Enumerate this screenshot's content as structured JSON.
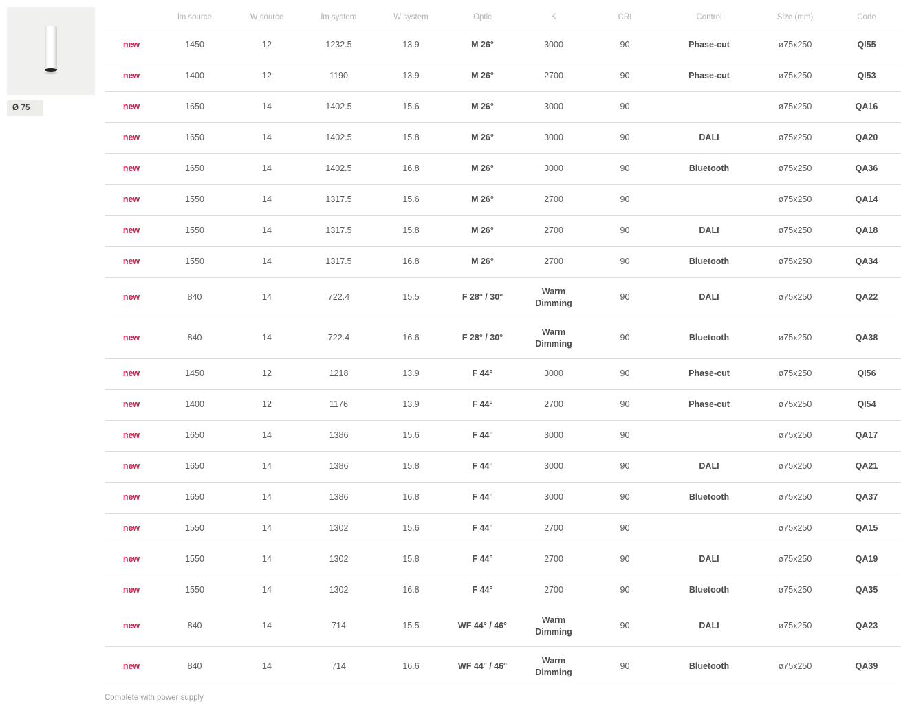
{
  "colors": {
    "accent_new": "#cd1f4c",
    "body_text": "#5b5b5d",
    "header_text": "#b2b2b2",
    "divider": "#dcdcdc",
    "product_image_bg": "#f0f0ef",
    "label_bg": "#ededea"
  },
  "product_panel": {
    "image_name": "white-cylinder-ceiling-lamp",
    "diameter_label": "Ø 75"
  },
  "table": {
    "column_keys": [
      "new",
      "lm_source",
      "w_source",
      "lm_system",
      "w_system",
      "optic",
      "k",
      "cri",
      "control",
      "size",
      "code"
    ],
    "headers": {
      "new": "",
      "lm_source": "lm source",
      "w_source": "W source",
      "lm_system": "lm system",
      "w_system": "W system",
      "optic": "Optic",
      "k": "K",
      "cri": "CRI",
      "control": "Control",
      "size": "Size (mm)",
      "code": "Code"
    },
    "rows": [
      {
        "new": "new",
        "lm_source": "1450",
        "w_source": "12",
        "lm_system": "1232.5",
        "w_system": "13.9",
        "optic": "M 26°",
        "k": "3000",
        "cri": "90",
        "control": "Phase-cut",
        "size": "ø75x250",
        "code": "QI55",
        "tall": false
      },
      {
        "new": "new",
        "lm_source": "1400",
        "w_source": "12",
        "lm_system": "1190",
        "w_system": "13.9",
        "optic": "M 26°",
        "k": "2700",
        "cri": "90",
        "control": "Phase-cut",
        "size": "ø75x250",
        "code": "QI53",
        "tall": false
      },
      {
        "new": "new",
        "lm_source": "1650",
        "w_source": "14",
        "lm_system": "1402.5",
        "w_system": "15.6",
        "optic": "M 26°",
        "k": "3000",
        "cri": "90",
        "control": "",
        "size": "ø75x250",
        "code": "QA16",
        "tall": false
      },
      {
        "new": "new",
        "lm_source": "1650",
        "w_source": "14",
        "lm_system": "1402.5",
        "w_system": "15.8",
        "optic": "M 26°",
        "k": "3000",
        "cri": "90",
        "control": "DALI",
        "size": "ø75x250",
        "code": "QA20",
        "tall": false
      },
      {
        "new": "new",
        "lm_source": "1650",
        "w_source": "14",
        "lm_system": "1402.5",
        "w_system": "16.8",
        "optic": "M 26°",
        "k": "3000",
        "cri": "90",
        "control": "Bluetooth",
        "size": "ø75x250",
        "code": "QA36",
        "tall": false
      },
      {
        "new": "new",
        "lm_source": "1550",
        "w_source": "14",
        "lm_system": "1317.5",
        "w_system": "15.6",
        "optic": "M 26°",
        "k": "2700",
        "cri": "90",
        "control": "",
        "size": "ø75x250",
        "code": "QA14",
        "tall": false
      },
      {
        "new": "new",
        "lm_source": "1550",
        "w_source": "14",
        "lm_system": "1317.5",
        "w_system": "15.8",
        "optic": "M 26°",
        "k": "2700",
        "cri": "90",
        "control": "DALI",
        "size": "ø75x250",
        "code": "QA18",
        "tall": false
      },
      {
        "new": "new",
        "lm_source": "1550",
        "w_source": "14",
        "lm_system": "1317.5",
        "w_system": "16.8",
        "optic": "M 26°",
        "k": "2700",
        "cri": "90",
        "control": "Bluetooth",
        "size": "ø75x250",
        "code": "QA34",
        "tall": false
      },
      {
        "new": "new",
        "lm_source": "840",
        "w_source": "14",
        "lm_system": "722.4",
        "w_system": "15.5",
        "optic": "F 28° / 30°",
        "k": "Warm\nDimming",
        "cri": "90",
        "control": "DALI",
        "size": "ø75x250",
        "code": "QA22",
        "tall": true
      },
      {
        "new": "new",
        "lm_source": "840",
        "w_source": "14",
        "lm_system": "722.4",
        "w_system": "16.6",
        "optic": "F 28° / 30°",
        "k": "Warm\nDimming",
        "cri": "90",
        "control": "Bluetooth",
        "size": "ø75x250",
        "code": "QA38",
        "tall": true
      },
      {
        "new": "new",
        "lm_source": "1450",
        "w_source": "12",
        "lm_system": "1218",
        "w_system": "13.9",
        "optic": "F 44°",
        "k": "3000",
        "cri": "90",
        "control": "Phase-cut",
        "size": "ø75x250",
        "code": "QI56",
        "tall": false
      },
      {
        "new": "new",
        "lm_source": "1400",
        "w_source": "12",
        "lm_system": "1176",
        "w_system": "13.9",
        "optic": "F 44°",
        "k": "2700",
        "cri": "90",
        "control": "Phase-cut",
        "size": "ø75x250",
        "code": "QI54",
        "tall": false
      },
      {
        "new": "new",
        "lm_source": "1650",
        "w_source": "14",
        "lm_system": "1386",
        "w_system": "15.6",
        "optic": "F 44°",
        "k": "3000",
        "cri": "90",
        "control": "",
        "size": "ø75x250",
        "code": "QA17",
        "tall": false
      },
      {
        "new": "new",
        "lm_source": "1650",
        "w_source": "14",
        "lm_system": "1386",
        "w_system": "15.8",
        "optic": "F 44°",
        "k": "3000",
        "cri": "90",
        "control": "DALI",
        "size": "ø75x250",
        "code": "QA21",
        "tall": false
      },
      {
        "new": "new",
        "lm_source": "1650",
        "w_source": "14",
        "lm_system": "1386",
        "w_system": "16.8",
        "optic": "F 44°",
        "k": "3000",
        "cri": "90",
        "control": "Bluetooth",
        "size": "ø75x250",
        "code": "QA37",
        "tall": false
      },
      {
        "new": "new",
        "lm_source": "1550",
        "w_source": "14",
        "lm_system": "1302",
        "w_system": "15.6",
        "optic": "F 44°",
        "k": "2700",
        "cri": "90",
        "control": "",
        "size": "ø75x250",
        "code": "QA15",
        "tall": false
      },
      {
        "new": "new",
        "lm_source": "1550",
        "w_source": "14",
        "lm_system": "1302",
        "w_system": "15.8",
        "optic": "F 44°",
        "k": "2700",
        "cri": "90",
        "control": "DALI",
        "size": "ø75x250",
        "code": "QA19",
        "tall": false
      },
      {
        "new": "new",
        "lm_source": "1550",
        "w_source": "14",
        "lm_system": "1302",
        "w_system": "16.8",
        "optic": "F 44°",
        "k": "2700",
        "cri": "90",
        "control": "Bluetooth",
        "size": "ø75x250",
        "code": "QA35",
        "tall": false
      },
      {
        "new": "new",
        "lm_source": "840",
        "w_source": "14",
        "lm_system": "714",
        "w_system": "15.5",
        "optic": "WF 44° / 46°",
        "k": "Warm\nDimming",
        "cri": "90",
        "control": "DALI",
        "size": "ø75x250",
        "code": "QA23",
        "tall": true
      },
      {
        "new": "new",
        "lm_source": "840",
        "w_source": "14",
        "lm_system": "714",
        "w_system": "16.6",
        "optic": "WF 44° / 46°",
        "k": "Warm\nDimming",
        "cri": "90",
        "control": "Bluetooth",
        "size": "ø75x250",
        "code": "QA39",
        "tall": true
      }
    ]
  },
  "footer": {
    "note": "Complete with power supply"
  }
}
